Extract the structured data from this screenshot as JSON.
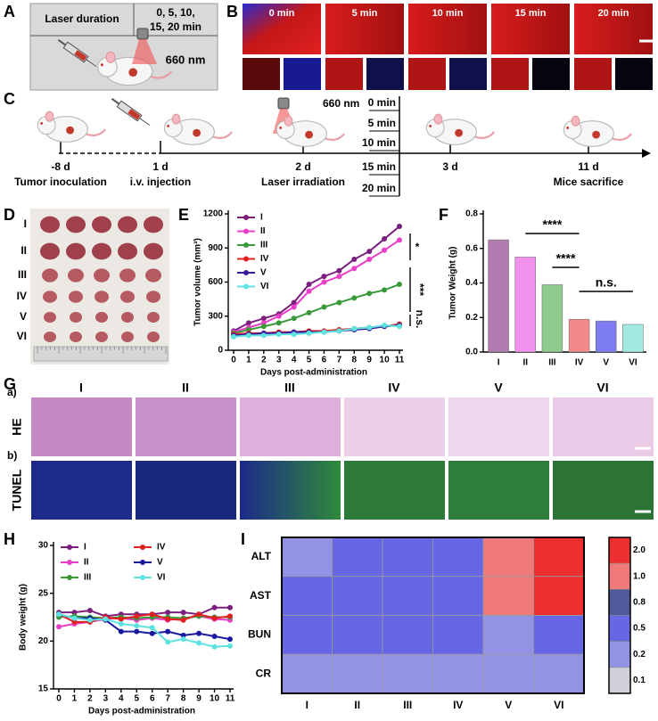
{
  "panel_labels": [
    "A",
    "B",
    "C",
    "D",
    "E",
    "F",
    "G",
    "H",
    "I"
  ],
  "panel_a": {
    "header": "Laser duration",
    "durations": [
      "0, 5, 10,",
      "15, 20 min"
    ],
    "wavelength": "660 nm"
  },
  "panel_b": {
    "timepoints": [
      "0 min",
      "5 min",
      "10 min",
      "15 min",
      "20 min"
    ]
  },
  "panel_c": {
    "events": [
      {
        "day": "-8 d",
        "label": "Tumor inoculation"
      },
      {
        "day": "1 d",
        "label": "i.v. injection"
      },
      {
        "day": "2 d",
        "label": "Laser irradiation"
      },
      {
        "day": "3 d"
      },
      {
        "day": "11 d",
        "label": "Mice sacrifice"
      }
    ],
    "wavelength": "660 nm",
    "durations": [
      "0 min",
      "5 min",
      "10 min",
      "15 min",
      "20 min"
    ]
  },
  "panel_d": {
    "groups": [
      "I",
      "II",
      "III",
      "IV",
      "V",
      "VI"
    ]
  },
  "panel_g": {
    "groups": [
      "I",
      "II",
      "III",
      "IV",
      "V",
      "VI"
    ],
    "rows": [
      {
        "tag": "a)",
        "label": "HE"
      },
      {
        "tag": "b)",
        "label": "TUNEL"
      }
    ]
  },
  "chart_data": [
    {
      "type": "line",
      "ylabel": "Tumor volume (mm³)",
      "xlabel": "Days post-administration",
      "x": [
        0,
        1,
        2,
        3,
        4,
        5,
        6,
        7,
        8,
        9,
        10,
        11
      ],
      "xlim": [
        0,
        11
      ],
      "xticks": [
        0,
        1,
        2,
        3,
        4,
        5,
        6,
        7,
        8,
        9,
        10,
        11
      ],
      "ylim": [
        0,
        1200
      ],
      "yticks": [
        0,
        300,
        600,
        900,
        1200
      ],
      "legend": "upper left",
      "series": [
        {
          "name": "I",
          "color": "#7b1f7e",
          "values": [
            170,
            240,
            280,
            320,
            420,
            580,
            650,
            700,
            800,
            870,
            980,
            1090
          ]
        },
        {
          "name": "II",
          "color": "#e83ec8",
          "values": [
            160,
            200,
            240,
            300,
            380,
            520,
            600,
            650,
            720,
            800,
            880,
            970
          ]
        },
        {
          "name": "III",
          "color": "#3a9a3a",
          "values": [
            150,
            180,
            210,
            240,
            280,
            330,
            380,
            420,
            460,
            500,
            530,
            580
          ]
        },
        {
          "name": "IV",
          "color": "#e0201f",
          "values": [
            140,
            150,
            150,
            160,
            160,
            170,
            170,
            180,
            190,
            200,
            210,
            230
          ]
        },
        {
          "name": "V",
          "color": "#3c1aa0",
          "values": [
            130,
            140,
            150,
            150,
            160,
            160,
            160,
            170,
            180,
            190,
            210,
            220
          ]
        },
        {
          "name": "VI",
          "color": "#5de3e0",
          "values": [
            120,
            130,
            130,
            140,
            140,
            150,
            160,
            170,
            190,
            200,
            220,
            210
          ]
        }
      ],
      "annotations": [
        "*",
        "***",
        "n.s."
      ]
    },
    {
      "type": "bar",
      "ylabel": "Tumor Weight (g)",
      "categories": [
        "I",
        "II",
        "III",
        "IV",
        "V",
        "VI"
      ],
      "values": [
        0.65,
        0.55,
        0.39,
        0.19,
        0.18,
        0.16
      ],
      "colors": [
        "#b27bb0",
        "#f290ee",
        "#8fcb8e",
        "#f28a8a",
        "#7d7df0",
        "#a2eae2"
      ],
      "ylim": [
        0,
        0.8
      ],
      "yticks": [
        {
          "value": 0,
          "label": "0.0"
        },
        {
          "value": 0.2,
          "label": "0.2"
        },
        {
          "value": 0.4,
          "label": "0.4"
        },
        {
          "value": 0.6,
          "label": "0.6"
        },
        {
          "value": 0.8,
          "label": "0.8"
        }
      ],
      "annotations": [
        "****",
        "****",
        "n.s."
      ]
    },
    {
      "type": "line",
      "ylabel": "Body weight (g)",
      "xlabel": "Days post-administration",
      "x": [
        0,
        1,
        2,
        3,
        4,
        5,
        6,
        7,
        8,
        9,
        10,
        11
      ],
      "xlim": [
        0,
        11
      ],
      "xticks": [
        0,
        1,
        2,
        3,
        4,
        5,
        6,
        7,
        8,
        9,
        10,
        11
      ],
      "ylim": [
        15,
        30
      ],
      "yticks": [
        15,
        20,
        25,
        30
      ],
      "legend": "upper left",
      "series": [
        {
          "name": "I",
          "color": "#7b1f7e",
          "values": [
            23,
            23,
            23.2,
            22.6,
            22.8,
            22.8,
            22.8,
            23,
            23,
            22.8,
            23.5,
            23.5
          ]
        },
        {
          "name": "II",
          "color": "#e83ec8",
          "values": [
            21.5,
            21.8,
            22,
            22.3,
            22.4,
            22.2,
            22.4,
            22.2,
            22.4,
            22.6,
            22.3,
            22.2
          ]
        },
        {
          "name": "III",
          "color": "#3a9a3a",
          "values": [
            22.5,
            22.6,
            22.5,
            22.4,
            22.5,
            22.4,
            22.5,
            22.5,
            22.4,
            22.6,
            22.5,
            22.5
          ]
        },
        {
          "name": "IV",
          "color": "#e0201f",
          "values": [
            22.8,
            22,
            22,
            22.5,
            22.3,
            22.6,
            22.8,
            22.3,
            22.2,
            22.8,
            22.4,
            22.6
          ]
        },
        {
          "name": "V",
          "color": "#1a1aa0",
          "values": [
            22.8,
            22.4,
            22.4,
            22.2,
            21,
            21,
            20.8,
            21,
            20.6,
            20.8,
            20.5,
            20.2
          ]
        },
        {
          "name": "VI",
          "color": "#5de3e0",
          "values": [
            22.8,
            22.4,
            22.2,
            22.3,
            21.8,
            21.6,
            21.4,
            19.9,
            20.2,
            19.8,
            19.4,
            19.5
          ]
        }
      ]
    },
    {
      "type": "heatmap",
      "rows": [
        "ALT",
        "AST",
        "BUN",
        "CR"
      ],
      "columns": [
        "I",
        "II",
        "III",
        "IV",
        "V",
        "VI"
      ],
      "values": [
        [
          0.2,
          0.5,
          0.5,
          0.5,
          1.0,
          2.0
        ],
        [
          0.5,
          0.5,
          0.5,
          0.5,
          1.0,
          2.0
        ],
        [
          0.5,
          0.5,
          0.5,
          0.5,
          0.2,
          0.5
        ],
        [
          0.2,
          0.2,
          0.2,
          0.2,
          0.2,
          0.2
        ]
      ],
      "colorbar": {
        "ticks": [
          {
            "value": 2,
            "label": "2.0"
          },
          {
            "value": 1,
            "label": "1.0"
          },
          {
            "value": 0.8,
            "label": "0.8"
          },
          {
            "value": 0.5,
            "label": "0.5"
          },
          {
            "value": 0.2,
            "label": "0.2"
          },
          {
            "value": 0.1,
            "label": "0.1"
          }
        ],
        "colors": [
          "#ee2f2f",
          "#f07a7a",
          "#505a9a",
          "#6767e6",
          "#9393e6",
          "#d0d0d8"
        ]
      }
    }
  ]
}
